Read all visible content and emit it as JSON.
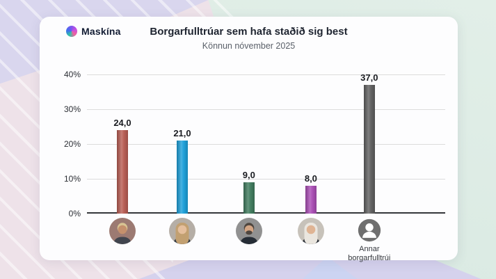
{
  "brand": {
    "name": "Maskína"
  },
  "header": {
    "title": "Borgarfulltrúar sem hafa staðið sig best",
    "subtitle": "Könnun nóvember 2025"
  },
  "chart_data": {
    "type": "bar",
    "title": "Borgarfulltrúar sem hafa staðið sig best",
    "subtitle": "Könnun nóvember 2025",
    "xlabel": "",
    "ylabel": "",
    "values": [
      24.0,
      21.0,
      9.0,
      8.0,
      37.0
    ],
    "value_labels": [
      "24,0",
      "21,0",
      "9,0",
      "8,0",
      "37,0"
    ],
    "categories": [
      {
        "label": "",
        "avatar": "councillor-photo-1",
        "kind": "photo",
        "colors": {
          "bg": "#9c7a72",
          "hair": "#d8c493",
          "skin": "#c5906c",
          "top": "#41454e",
          "hairstyle": "short"
        }
      },
      {
        "label": "",
        "avatar": "councillor-photo-2",
        "kind": "photo",
        "colors": {
          "bg": "#b5aea6",
          "hair": "#c2a071",
          "skin": "#e5bf9d",
          "top": "#333a44",
          "hairstyle": "long"
        }
      },
      {
        "label": "",
        "avatar": "councillor-photo-3",
        "kind": "photo",
        "colors": {
          "bg": "#919191",
          "hair": "#4f463f",
          "skin": "#d3a584",
          "top": "#262d36",
          "hairstyle": "beard"
        }
      },
      {
        "label": "",
        "avatar": "councillor-photo-4",
        "kind": "photo",
        "colors": {
          "bg": "#c7c2ba",
          "hair": "#eae6df",
          "skin": "#dfb494",
          "top": "#2b3038",
          "hairstyle": "long"
        }
      },
      {
        "label": "Annar borgarfulltrúi",
        "avatar": "generic-person-icon",
        "kind": "icon",
        "colors": {
          "bg": "#6f6f6f",
          "fg": "#ffffff"
        }
      }
    ],
    "bar_colors": [
      "#b85c52",
      "#1a9fd9",
      "#3e7a5c",
      "#a94cb4",
      "#5f5f5f"
    ],
    "bar_centers_pct": [
      9.9,
      26.6,
      45.2,
      62.5,
      78.8
    ],
    "ylim": [
      0,
      40
    ],
    "yticks": [
      "0%",
      "10%",
      "20%",
      "30%",
      "40%"
    ],
    "grid": true,
    "legend": "none"
  },
  "colors": {
    "bar_red": "#b85c52",
    "bar_blue": "#1a9fd9",
    "bar_green": "#3e7a5c",
    "bar_purple": "#a94cb4",
    "bar_gray": "#5f5f5f",
    "bg_pink": "#eee2e9",
    "bg_lavender": "#d9d6ee",
    "bg_mint": "#dcebe4",
    "card": "#fdfdfe"
  },
  "icons": {
    "logo": "maskina-gradient-circle",
    "generic_person": "person-silhouette-icon"
  }
}
